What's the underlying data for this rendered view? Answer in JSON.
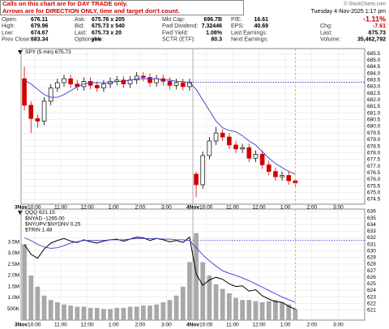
{
  "notice": [
    "Calls on this chart are for DAY TRADE only.",
    "Arrows are for DIRECTION ONLY, time and target don't count."
  ],
  "header": {
    "source": "© StockCharts.com",
    "date": "Tuesday 4-Nov-2025  1:17 pm"
  },
  "quote": {
    "rows": [
      [
        [
          "Open:",
          "676.11"
        ],
        [
          "Ask:",
          "675.76 x 205"
        ],
        [
          "Mkt Cap:",
          "696.7B"
        ],
        [
          "P/E:",
          "16.61"
        ],
        [
          "-1.11%"
        ]
      ],
      [
        [
          "High:",
          "679.96"
        ],
        [
          "Bid:",
          "675.73 x 540"
        ],
        [
          "Fwd Dividend:",
          "7.32446"
        ],
        [
          "EPS:",
          "40.69"
        ],
        [
          "Chg:",
          "-7.61"
        ]
      ],
      [
        [
          "Low:",
          "674.67"
        ],
        [
          "Last:",
          "675.73 x 20"
        ],
        [
          "Fwd Yield:",
          "1.08%"
        ],
        [
          "Last Earnings:"
        ],
        [
          "Last:",
          "675.73"
        ]
      ],
      [
        [
          "Prev Close:",
          "683.34"
        ],
        [
          "Optionable:",
          "yes"
        ],
        [
          "SCTR (ETF):",
          "80.3"
        ],
        [
          "Next Earnings:"
        ],
        [
          "Volume:",
          "35,462,792"
        ]
      ]
    ]
  },
  "chart_data": [
    {
      "type": "candlestick",
      "legend": "SPY (5 min) 675.73",
      "categories": [
        "3Nov",
        null,
        "10:00",
        null,
        null,
        null,
        "11:00",
        null,
        null,
        null,
        "12:00",
        null,
        null,
        null,
        "1:00",
        null,
        null,
        null,
        "2:00",
        null,
        null,
        null,
        "3:00",
        null,
        null,
        null,
        "4Nov",
        null,
        "10:00",
        null,
        null,
        null,
        "11:00",
        null,
        null,
        null,
        "12:00",
        null,
        null,
        null,
        "1:00",
        null,
        null,
        null,
        "2:00",
        null,
        null,
        null,
        "3:00",
        null,
        null,
        null
      ],
      "open": [
        683.6,
        681.6,
        680.6,
        680.4,
        681.9,
        682.9,
        683.3,
        683.6,
        683.2,
        683.0,
        683.4,
        683.1,
        682.9,
        683.2,
        683.4,
        683.5,
        683.2,
        683.5,
        683.8,
        683.7,
        683.3,
        683.6,
        683.4,
        683.1,
        683.3,
        683.0,
        676.4,
        675.6,
        677.8,
        678.9,
        679.5,
        679.2,
        678.6,
        678.3,
        678.4,
        677.6,
        677.9,
        677.1,
        676.6,
        676.2,
        676.3,
        675.9,
        null,
        null,
        null,
        null,
        null,
        null,
        null,
        null,
        null,
        null
      ],
      "high": [
        684.5,
        681.9,
        680.9,
        682.2,
        683.2,
        683.6,
        683.9,
        683.9,
        683.5,
        683.7,
        683.7,
        683.4,
        683.5,
        683.7,
        683.8,
        683.8,
        683.8,
        684.1,
        684.1,
        684.0,
        683.9,
        683.9,
        683.7,
        683.6,
        683.6,
        683.6,
        676.6,
        678.1,
        679.2,
        679.96,
        679.8,
        679.5,
        678.9,
        678.7,
        678.7,
        678.2,
        678.2,
        677.4,
        676.9,
        676.6,
        676.6,
        676.1,
        null,
        null,
        null,
        null,
        null,
        null,
        null,
        null,
        null,
        null
      ],
      "low": [
        681.2,
        679.5,
        679.9,
        680.1,
        681.6,
        682.6,
        683.0,
        682.9,
        682.7,
        682.7,
        682.8,
        682.6,
        682.6,
        682.9,
        683.1,
        682.9,
        682.9,
        683.2,
        683.4,
        683.0,
        683.0,
        683.1,
        682.8,
        682.8,
        682.7,
        682.7,
        674.67,
        675.3,
        677.5,
        678.6,
        678.9,
        678.3,
        678.0,
        678.0,
        677.3,
        677.3,
        676.8,
        676.3,
        675.9,
        675.9,
        675.6,
        675.5,
        null,
        null,
        null,
        null,
        null,
        null,
        null,
        null,
        null,
        null
      ],
      "close": [
        681.6,
        680.6,
        680.4,
        681.9,
        682.9,
        683.3,
        683.6,
        683.2,
        683.0,
        683.4,
        683.1,
        682.9,
        683.2,
        683.4,
        683.5,
        683.2,
        683.5,
        683.8,
        683.7,
        683.3,
        683.6,
        683.4,
        683.1,
        683.3,
        683.0,
        683.34,
        675.6,
        677.8,
        678.9,
        679.5,
        679.2,
        678.6,
        678.3,
        678.4,
        677.6,
        677.9,
        677.1,
        676.6,
        676.2,
        676.3,
        675.9,
        675.73,
        null,
        null,
        null,
        null,
        null,
        null,
        null,
        null,
        null,
        null
      ],
      "up_color": "#000000",
      "down_color": "#d00000",
      "series": [
        {
          "color": "#3a3ad0",
          "values": [
            683.5,
            683.2,
            682.8,
            682.4,
            682.2,
            682.2,
            682.4,
            682.7,
            683.0,
            683.2,
            683.3,
            683.3,
            683.3,
            683.3,
            683.4,
            683.4,
            683.5,
            683.6,
            683.6,
            683.6,
            683.6,
            683.5,
            683.5,
            683.4,
            683.4,
            683.3,
            682.8,
            682.0,
            681.2,
            680.4,
            679.9,
            679.7,
            679.6,
            679.3,
            678.9,
            678.6,
            678.1,
            677.6,
            677.2,
            676.9,
            676.6,
            676.4,
            null,
            null,
            null,
            null,
            null,
            null,
            null,
            null,
            null,
            null
          ]
        }
      ],
      "reference_line": 683.34,
      "ylim": [
        674.13,
        685.87
      ],
      "yticks": [
        674.5,
        {
          "value": 675,
          "label": "675.0"
        },
        675.5,
        {
          "value": 676,
          "label": "676.0"
        },
        676.5,
        {
          "value": 677,
          "label": "677.0"
        },
        677.5,
        {
          "value": 678,
          "label": "678.0"
        },
        678.5,
        {
          "value": 679,
          "label": "679.0"
        },
        679.5,
        {
          "value": 680,
          "label": "680.0"
        },
        680.5,
        {
          "value": 681,
          "label": "681.0"
        },
        681.5,
        {
          "value": 682,
          "label": "682.0"
        },
        682.5,
        {
          "value": 683,
          "label": "683.0"
        },
        683.5,
        {
          "value": 684,
          "label": "684.0"
        },
        684.5,
        {
          "value": 685,
          "label": "685.0"
        },
        685.5
      ],
      "grid": true
    },
    {
      "type": "line",
      "legend": "QQQ 621.15",
      "legend_extra": [
        "$NYAD -1265.00",
        "$NYUPV:$NYDNV 0.25",
        "$TRIN 1.48"
      ],
      "categories": [
        "3Nov",
        null,
        "10:00",
        null,
        null,
        null,
        "11:00",
        null,
        null,
        null,
        "12:00",
        null,
        null,
        null,
        "1:00",
        null,
        null,
        null,
        "2:00",
        null,
        null,
        null,
        "3:00",
        null,
        null,
        null,
        "4Nov",
        null,
        "10:00",
        null,
        null,
        null,
        "11:00",
        null,
        null,
        null,
        "12:00",
        null,
        null,
        null,
        "1:00",
        null,
        null,
        null,
        "2:00",
        null,
        null,
        null,
        "3:00",
        null,
        null,
        null
      ],
      "series": [
        {
          "color": "#000000",
          "values": [
            631.0,
            629.5,
            628.9,
            630.3,
            631.2,
            631.6,
            631.9,
            631.5,
            631.3,
            631.7,
            631.4,
            631.2,
            631.5,
            631.7,
            631.8,
            631.5,
            631.8,
            632.1,
            632.0,
            631.6,
            631.9,
            631.7,
            631.4,
            631.6,
            631.3,
            632.1,
            626.5,
            624.8,
            625.6,
            626.0,
            625.7,
            625.0,
            624.6,
            624.7,
            623.9,
            624.1,
            623.2,
            622.7,
            622.3,
            622.2,
            621.6,
            621.15,
            null,
            null,
            null,
            null,
            null,
            null,
            null,
            null,
            null,
            null
          ]
        },
        {
          "color": "#3a3ad0",
          "values": [
            632.0,
            631.6,
            631.0,
            630.6,
            630.4,
            630.5,
            630.8,
            631.2,
            631.4,
            631.6,
            631.6,
            631.6,
            631.6,
            631.7,
            631.7,
            631.7,
            631.8,
            631.9,
            631.9,
            631.9,
            631.9,
            631.8,
            631.8,
            631.7,
            631.7,
            631.6,
            630.5,
            629.4,
            628.5,
            627.7,
            627.0,
            626.6,
            626.3,
            625.9,
            625.5,
            625.0,
            624.5,
            624.0,
            623.5,
            623.0,
            622.6,
            622.2,
            null,
            null,
            null,
            null,
            null,
            null,
            null,
            null,
            null,
            null
          ]
        },
        {
          "color": "#a8a8a8",
          "axis": "y2",
          "values": [
            3400000,
            2000000,
            1500000,
            1100000,
            900000,
            800000,
            700000,
            650000,
            600000,
            600000,
            550000,
            550000,
            500000,
            500000,
            550000,
            550000,
            600000,
            600000,
            650000,
            650000,
            700000,
            800000,
            900000,
            1100000,
            1500000,
            2600000,
            3900000,
            2600000,
            2000000,
            1600000,
            1400000,
            1200000,
            1000000,
            900000,
            900000,
            850000,
            800000,
            850000,
            900000,
            800000,
            700000,
            500000,
            null,
            null,
            null,
            null,
            null,
            null,
            null,
            null,
            null,
            null
          ]
        }
      ],
      "reference_line": 631.6,
      "ylim": [
        619.5,
        636.37
      ],
      "yticks": [
        621,
        622,
        623,
        624,
        625,
        626,
        627,
        628,
        629,
        630,
        631,
        632,
        633,
        634,
        635,
        636
      ],
      "y2lim": [
        0,
        4980000
      ],
      "y2ticks": [
        {
          "value": 500000,
          "label": "500K"
        },
        {
          "value": 1000000,
          "label": "1.0M"
        },
        {
          "value": 1500000,
          "label": "1.5M"
        },
        {
          "value": 2000000,
          "label": "2.0M"
        },
        {
          "value": 2500000,
          "label": "2.5M"
        },
        {
          "value": 3000000,
          "label": "3.0M"
        },
        {
          "value": 3500000,
          "label": "3.5M"
        }
      ],
      "grid": true
    }
  ]
}
